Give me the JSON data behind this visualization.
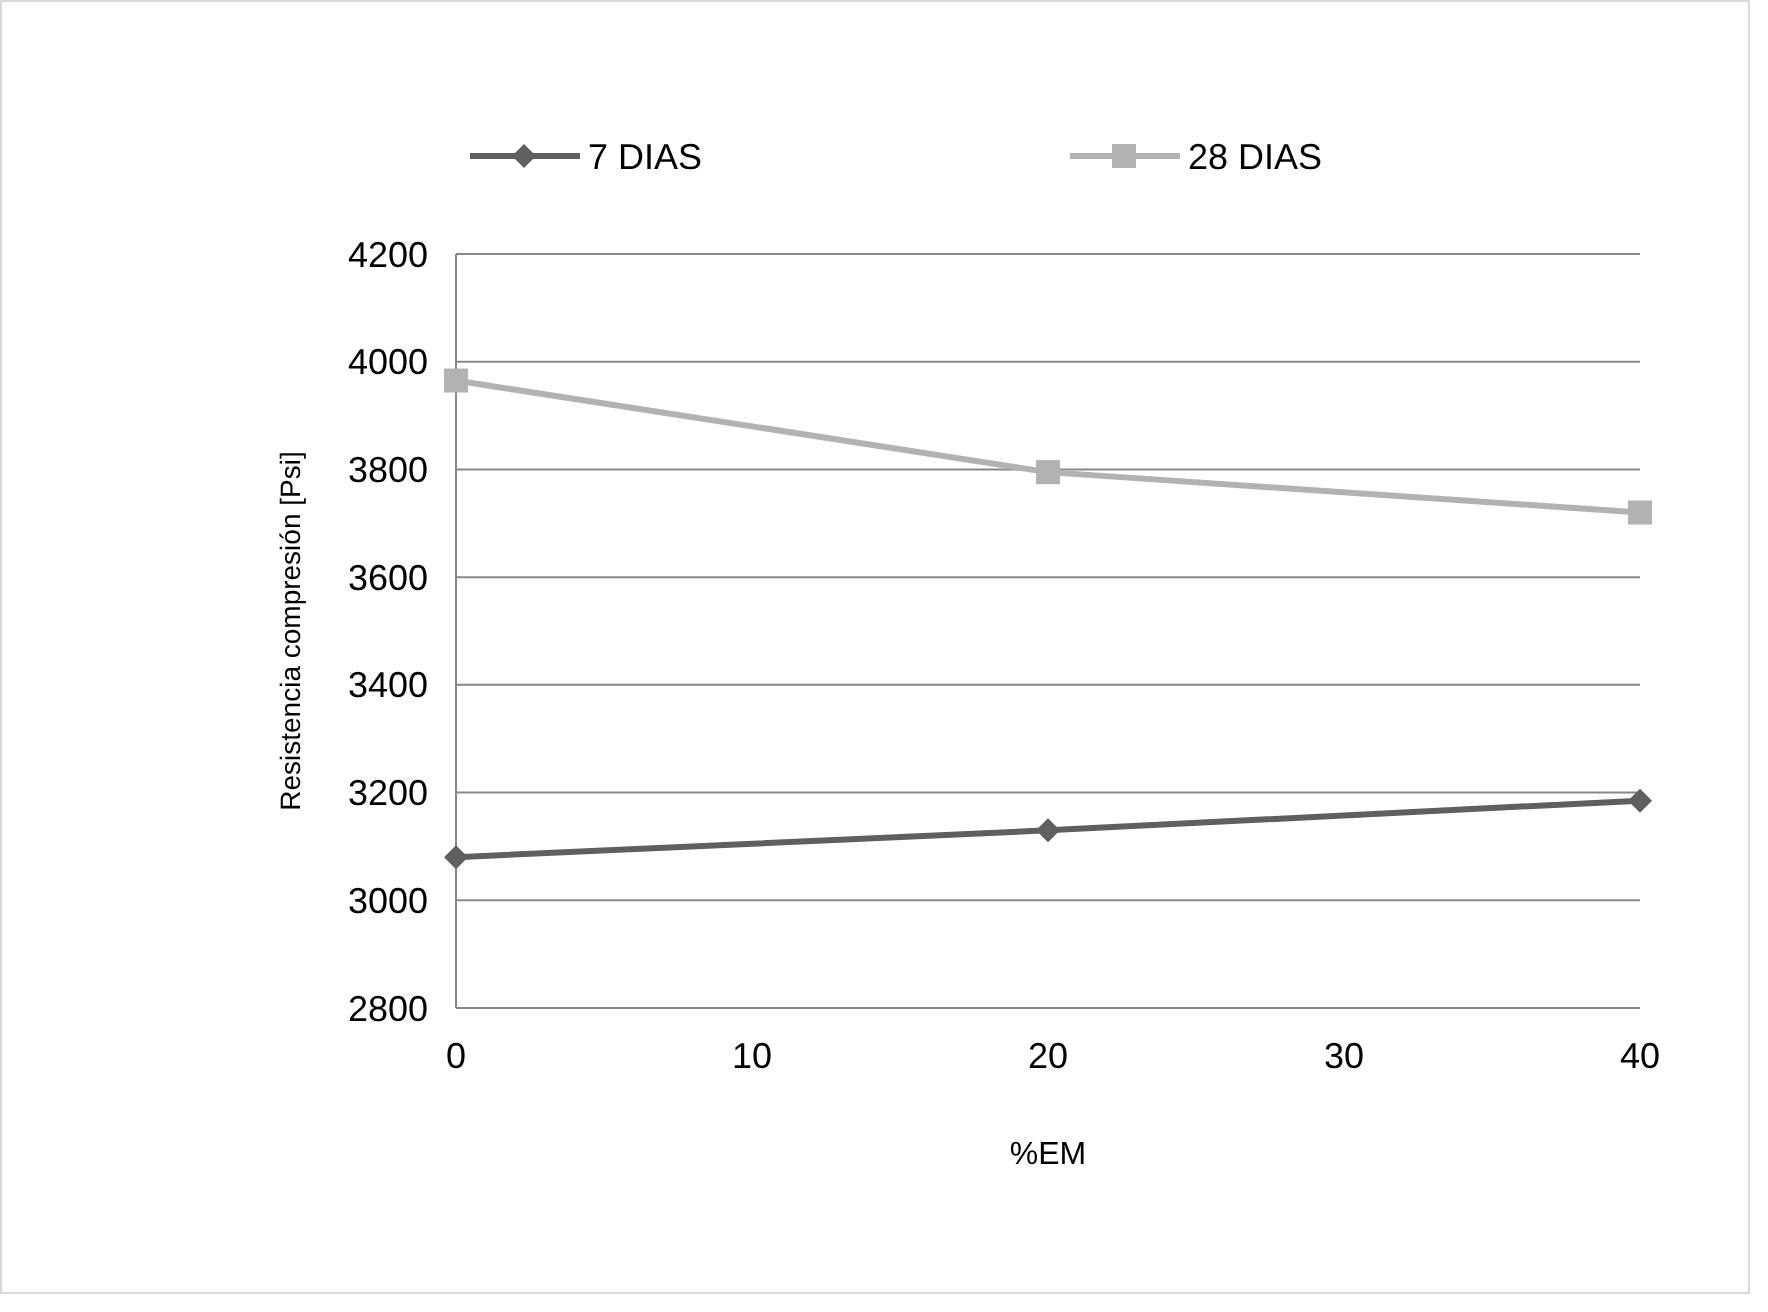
{
  "chart_data": {
    "type": "line",
    "xlabel": "%EM",
    "ylabel": "Resistencia compresión [Psi]",
    "x": [
      0,
      20,
      40
    ],
    "series": [
      {
        "name": "7 DIAS",
        "color": "#5f5f5f",
        "values": [
          3080,
          3130,
          3185
        ],
        "marker": "diamond"
      },
      {
        "name": "28 DIAS",
        "color": "#b2b2b2",
        "values": [
          3965,
          3795,
          3720
        ],
        "marker": "square"
      }
    ],
    "xlim": [
      0,
      40
    ],
    "xticks": [
      0,
      10,
      20,
      30,
      40
    ],
    "ylim": [
      2800,
      4200
    ],
    "yticks": [
      2800,
      3000,
      3200,
      3400,
      3600,
      3800,
      4000,
      4200
    ],
    "grid": "y",
    "legend": "top",
    "line_style": "solid"
  }
}
